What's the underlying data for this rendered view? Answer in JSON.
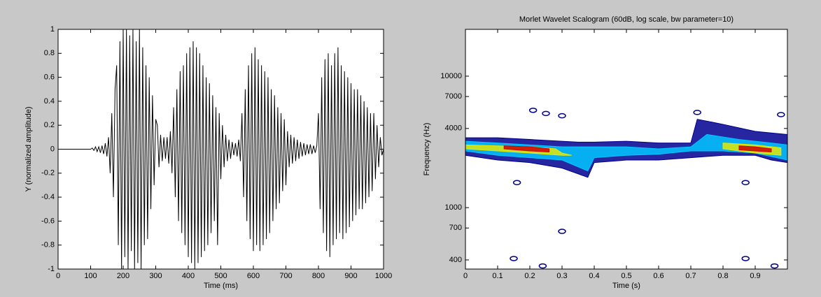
{
  "chart_data": [
    {
      "type": "line",
      "x_label": "Time (ms)",
      "y_label": "Y (normalized amplitude)",
      "color": "#000000",
      "x": [
        0,
        5,
        10,
        15,
        20,
        25,
        30,
        35,
        40,
        45,
        50,
        55,
        60,
        65,
        70,
        75,
        80,
        85,
        90,
        95,
        100,
        105,
        110,
        115,
        120,
        125,
        130,
        135,
        140,
        145,
        150,
        155,
        160,
        165,
        170,
        175,
        180,
        185,
        190,
        195,
        200,
        205,
        210,
        215,
        220,
        225,
        230,
        235,
        240,
        245,
        250,
        255,
        260,
        265,
        270,
        275,
        280,
        285,
        290,
        295,
        300,
        305,
        310,
        315,
        320,
        325,
        330,
        335,
        340,
        345,
        350,
        355,
        360,
        365,
        370,
        375,
        380,
        385,
        390,
        395,
        400,
        405,
        410,
        415,
        420,
        425,
        430,
        435,
        440,
        445,
        450,
        455,
        460,
        465,
        470,
        475,
        480,
        485,
        490,
        495,
        500,
        505,
        510,
        515,
        520,
        525,
        530,
        535,
        540,
        545,
        550,
        555,
        560,
        565,
        570,
        575,
        580,
        585,
        590,
        595,
        600,
        605,
        610,
        615,
        620,
        625,
        630,
        635,
        640,
        645,
        650,
        655,
        660,
        665,
        670,
        675,
        680,
        685,
        690,
        695,
        700,
        705,
        710,
        715,
        720,
        725,
        730,
        735,
        740,
        745,
        750,
        755,
        760,
        765,
        770,
        775,
        780,
        785,
        790,
        795,
        800,
        805,
        810,
        815,
        820,
        825,
        830,
        835,
        840,
        845,
        850,
        855,
        860,
        865,
        870,
        875,
        880,
        885,
        890,
        895,
        900,
        905,
        910,
        915,
        920,
        925,
        930,
        935,
        940,
        945,
        950,
        955,
        960,
        965,
        970,
        975,
        980,
        985,
        990,
        995,
        1000
      ],
      "values": [
        0,
        0,
        0,
        0,
        0,
        0,
        0,
        0,
        0,
        0,
        0,
        0,
        0,
        0,
        0,
        0,
        0,
        0,
        0,
        0,
        0,
        0.01,
        -0.01,
        0.02,
        -0.02,
        0.02,
        -0.03,
        0.03,
        -0.04,
        0.05,
        -0.06,
        0.1,
        -0.2,
        0.3,
        -0.4,
        0.5,
        0.7,
        -0.8,
        0.9,
        -1,
        1,
        -0.9,
        1,
        -1,
        0.95,
        -0.85,
        1,
        -1,
        0.9,
        -0.95,
        1,
        -1,
        0.85,
        -0.8,
        0.7,
        -0.75,
        0.6,
        -0.5,
        0.45,
        -0.3,
        0.25,
        0.2,
        -0.15,
        0.12,
        -0.1,
        0.1,
        -0.08,
        0.1,
        -0.12,
        0.15,
        -0.2,
        0.35,
        -0.4,
        0.5,
        -0.6,
        0.65,
        -0.7,
        0.7,
        -0.8,
        0.8,
        -0.9,
        0.85,
        -0.95,
        0.9,
        -1,
        0.85,
        -0.95,
        0.8,
        -0.9,
        0.7,
        -0.85,
        0.6,
        -0.8,
        0.55,
        -0.7,
        0.45,
        -0.6,
        0.35,
        -0.8,
        0.3,
        -0.25,
        0.2,
        -0.15,
        0.12,
        -0.1,
        0.08,
        -0.08,
        0.06,
        -0.05,
        0.05,
        -0.06,
        0.08,
        -0.1,
        0.3,
        -0.4,
        0.5,
        -0.6,
        0.7,
        -0.75,
        0.8,
        -0.85,
        0.85,
        -0.8,
        0.75,
        -0.85,
        0.7,
        -0.8,
        0.65,
        -0.75,
        0.6,
        -0.7,
        0.5,
        -0.6,
        0.45,
        -0.5,
        0.35,
        -0.45,
        0.3,
        -0.35,
        0.25,
        -0.3,
        0.15,
        -0.15,
        0.12,
        -0.12,
        0.1,
        -0.1,
        0.08,
        -0.08,
        0.06,
        -0.06,
        0.05,
        -0.05,
        0.04,
        -0.04,
        0.04,
        -0.04,
        0.03,
        -0.03,
        0.03,
        0.3,
        -0.5,
        0.6,
        -0.7,
        0.75,
        -0.85,
        0.8,
        -0.9,
        0.7,
        -0.8,
        0.8,
        -0.75,
        0.85,
        -0.7,
        0.7,
        -0.75,
        0.65,
        -0.7,
        0.6,
        -0.65,
        0.55,
        -0.6,
        0.5,
        -0.55,
        0.5,
        -0.5,
        0.45,
        -0.5,
        0.4,
        -0.45,
        0.35,
        -0.4,
        0.3,
        -0.35,
        0.3,
        -0.25,
        0.2,
        -0.15,
        0.1,
        -0.05,
        0
      ],
      "xlim": [
        0,
        1000
      ],
      "xticks": [
        0,
        100,
        200,
        300,
        400,
        500,
        600,
        700,
        800,
        900,
        1000
      ],
      "ylim": [
        -1,
        1
      ],
      "yticks": [
        -1,
        -0.8,
        -0.6,
        -0.4,
        -0.2,
        0,
        0.2,
        0.4,
        0.6,
        0.8,
        1
      ]
    },
    {
      "type": "contour",
      "title": "Morlet Wavelet Scalogram (60dB, log scale, bw parameter=10)",
      "x_label": "Time (s)",
      "y_label": "Frequency (Hz)",
      "log_y": true,
      "xlim": [
        0,
        1
      ],
      "xticks": [
        0,
        0.1,
        0.2,
        0.3,
        0.4,
        0.5,
        0.6,
        0.7,
        0.8,
        0.9
      ],
      "ylim": [
        341,
        22700
      ],
      "yticks": [
        400,
        700,
        1000,
        4000,
        7000,
        10000
      ],
      "series": [
        {
          "shape": "polygon",
          "color": "#00008f",
          "x": [
            0,
            0.1,
            0.2,
            0.3,
            0.35,
            0.4,
            0.5,
            0.6,
            0.7,
            0.72,
            0.8,
            0.9,
            1,
            1,
            0.95,
            0.9,
            0.8,
            0.7,
            0.6,
            0.5,
            0.4,
            0.38,
            0.3,
            0.2,
            0.1,
            0
          ],
          "y": [
            3400,
            3400,
            3300,
            3200,
            3150,
            3150,
            3200,
            3100,
            3100,
            4700,
            4300,
            3800,
            3600,
            2200,
            2300,
            2500,
            2500,
            2400,
            2300,
            2300,
            2200,
            1700,
            2000,
            2200,
            2300,
            2500
          ]
        },
        {
          "shape": "polygon",
          "color": "#00c8ff",
          "x": [
            0,
            0.1,
            0.2,
            0.3,
            0.4,
            0.5,
            0.6,
            0.7,
            0.75,
            0.85,
            0.95,
            1,
            1,
            0.9,
            0.8,
            0.7,
            0.6,
            0.5,
            0.4,
            0.38,
            0.3,
            0.2,
            0.1,
            0
          ],
          "y": [
            3200,
            3100,
            3000,
            2900,
            2900,
            2900,
            2800,
            2900,
            3600,
            3300,
            3100,
            3000,
            2300,
            2600,
            2700,
            2700,
            2550,
            2500,
            2400,
            1900,
            2300,
            2400,
            2500,
            2700
          ]
        },
        {
          "shape": "polygon",
          "color": "#e8e800",
          "x": [
            0,
            0.1,
            0.2,
            0.28,
            0.3,
            0.33,
            0.3,
            0.2,
            0.1,
            0
          ],
          "y": [
            3000,
            2950,
            2900,
            2800,
            2600,
            2500,
            2500,
            2600,
            2700,
            2800
          ]
        },
        {
          "shape": "polygon",
          "color": "#e8e800",
          "x": [
            0.8,
            0.9,
            0.98,
            0.98,
            0.9,
            0.8
          ],
          "y": [
            3100,
            3000,
            2850,
            2500,
            2600,
            2800
          ]
        },
        {
          "shape": "polygon",
          "color": "#d00000",
          "x": [
            0.12,
            0.2,
            0.26,
            0.26,
            0.2,
            0.12
          ],
          "y": [
            2950,
            2900,
            2800,
            2650,
            2700,
            2800
          ]
        },
        {
          "shape": "polygon",
          "color": "#d00000",
          "x": [
            0.85,
            0.9,
            0.95,
            0.95,
            0.9,
            0.85
          ],
          "y": [
            2950,
            2900,
            2800,
            2650,
            2700,
            2750
          ]
        },
        {
          "shape": "dots",
          "color": "#00008f",
          "x": [
            0.21,
            0.25,
            0.3,
            0.72,
            0.98,
            0.16,
            0.87,
            0.3,
            0.15,
            0.24,
            0.87,
            0.96
          ],
          "y": [
            5500,
            5200,
            5000,
            5300,
            5100,
            1550,
            1550,
            660,
            410,
            360,
            410,
            360
          ]
        }
      ]
    }
  ]
}
